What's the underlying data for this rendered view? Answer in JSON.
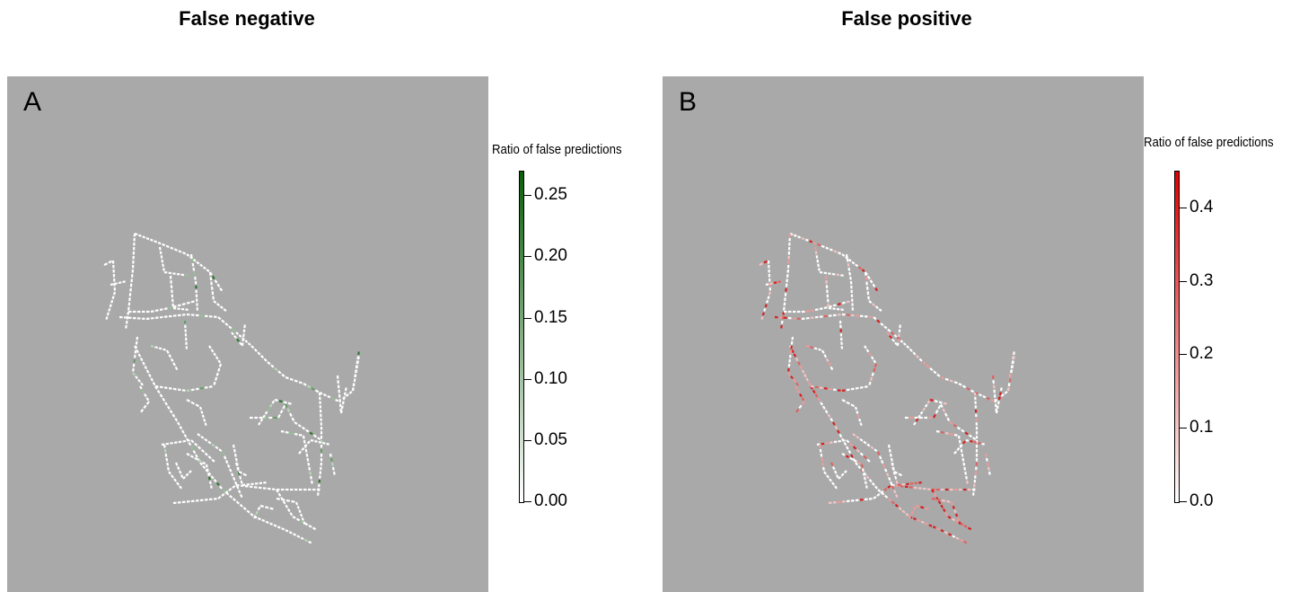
{
  "panels": [
    {
      "title": "False negative",
      "letter": "A",
      "legend": {
        "title": "Ratio of false predictions",
        "color_low": "#ffffff",
        "color_high": "#0a5e0a",
        "min": 0,
        "max": 0.27,
        "ticks": [
          "0.00",
          "0.05",
          "0.10",
          "0.15",
          "0.20",
          "0.25"
        ],
        "tick_values": [
          0,
          0.05,
          0.1,
          0.15,
          0.2,
          0.25
        ]
      }
    },
    {
      "title": "False positive",
      "letter": "B",
      "legend": {
        "title": "Ratio of false predictions",
        "color_low": "#ffffff",
        "color_high": "#e00000",
        "min": 0,
        "max": 0.45,
        "ticks": [
          "0.0",
          "0.1",
          "0.2",
          "0.3",
          "0.4"
        ],
        "tick_values": [
          0,
          0.1,
          0.2,
          0.3,
          0.4
        ]
      }
    }
  ],
  "colors": {
    "background": "#a9a9a9",
    "network": "#ffffff"
  }
}
